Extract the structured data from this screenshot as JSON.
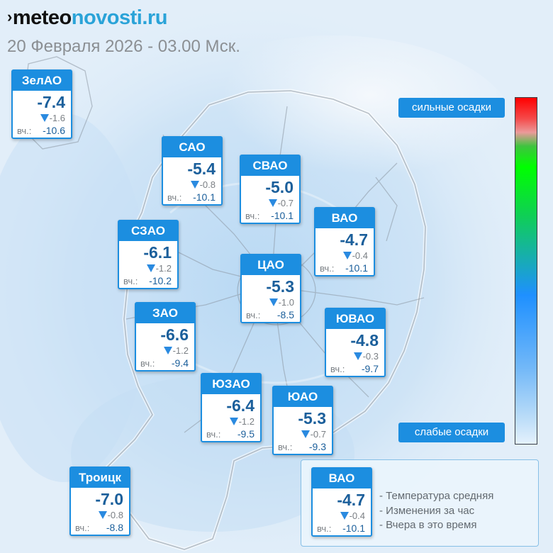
{
  "header": {
    "brand_mark": "›",
    "brand_part1": "meteo",
    "brand_part2": "novosti.ru",
    "datetime": "20 Февраля 2026 - 03.00 Мск."
  },
  "colors": {
    "card_accent": "#1c8ee0",
    "temperature_text": "#1b5f9b",
    "change_arrow": "#2a8ae0",
    "brand_blue": "#2aa3d8",
    "map_background": "#e4f0fa",
    "scale_top": "#ff0000",
    "scale_green": "#00ff00",
    "scale_blue": "#1e90ff",
    "scale_bottom": "#e4f1fc"
  },
  "districts": [
    {
      "name": "ЗелАО",
      "temp": "-7.4",
      "change": "-1.6",
      "yesterday_label": "вч.:",
      "yesterday": "-10.6"
    },
    {
      "name": "САО",
      "temp": "-5.4",
      "change": "-0.8",
      "yesterday_label": "вч.:",
      "yesterday": "-10.1"
    },
    {
      "name": "СВАО",
      "temp": "-5.0",
      "change": "-0.7",
      "yesterday_label": "вч.:",
      "yesterday": "-10.1"
    },
    {
      "name": "ВАО",
      "temp": "-4.7",
      "change": "-0.4",
      "yesterday_label": "вч.:",
      "yesterday": "-10.1"
    },
    {
      "name": "СЗАО",
      "temp": "-6.1",
      "change": "-1.2",
      "yesterday_label": "вч.:",
      "yesterday": "-10.2"
    },
    {
      "name": "ЦАО",
      "temp": "-5.3",
      "change": "-1.0",
      "yesterday_label": "вч.:",
      "yesterday": "-8.5"
    },
    {
      "name": "ЗАО",
      "temp": "-6.6",
      "change": "-1.2",
      "yesterday_label": "вч.:",
      "yesterday": "-9.4"
    },
    {
      "name": "ЮВАО",
      "temp": "-4.8",
      "change": "-0.3",
      "yesterday_label": "вч.:",
      "yesterday": "-9.7"
    },
    {
      "name": "ЮЗАО",
      "temp": "-6.4",
      "change": "-1.2",
      "yesterday_label": "вч.:",
      "yesterday": "-9.5"
    },
    {
      "name": "ЮАО",
      "temp": "-5.3",
      "change": "-0.7",
      "yesterday_label": "вч.:",
      "yesterday": "-9.3"
    },
    {
      "name": "Троицк",
      "temp": "-7.0",
      "change": "-0.8",
      "yesterday_label": "вч.:",
      "yesterday": "-8.8"
    }
  ],
  "scale": {
    "top_label": "сильные осадки",
    "bottom_label": "слабые осадки"
  },
  "legend": {
    "sample": {
      "name": "ВАО",
      "temp": "-4.7",
      "change": "-0.4",
      "yesterday_label": "вч.:",
      "yesterday": "-10.1"
    },
    "line_temp": "- Температура средняя",
    "line_change": "- Изменения за час",
    "line_yesterday": "- Вчера в это время"
  }
}
